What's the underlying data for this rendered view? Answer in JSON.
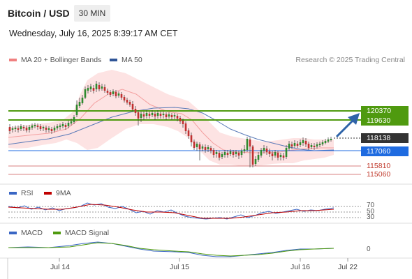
{
  "header": {
    "title": "Bitcoin / USD",
    "timeframe": "30 MIN",
    "datetime": "Wednesday, July 16, 2025 8:39:17 AM CET"
  },
  "legend": {
    "ma20": {
      "label": "MA 20 + Bollinger Bands",
      "color": "#f08080"
    },
    "ma50": {
      "label": "MA 50",
      "color": "#2f5597"
    }
  },
  "credit": "Research © 2025 Trading Central",
  "price_levels": [
    {
      "label": "120370",
      "style": "box",
      "color": "#4f9a0f"
    },
    {
      "label": "119630",
      "style": "box",
      "color": "#4f9a0f"
    },
    {
      "label": "118138",
      "style": "box",
      "color": "#333333"
    },
    {
      "label": "117060",
      "style": "box",
      "color": "#1f6be0"
    },
    {
      "label": "115810",
      "style": "text",
      "color": "#c0392b"
    },
    {
      "label": "115060",
      "style": "text",
      "color": "#c0392b"
    }
  ],
  "rsi": {
    "legend_rsi": "RSI",
    "legend_9ma": "9MA",
    "rsi_color": "#3a66c4",
    "ma_color": "#c00000",
    "levels": [
      "70",
      "50",
      "30"
    ]
  },
  "macd": {
    "legend_macd": "MACD",
    "legend_signal": "MACD Signal",
    "macd_color": "#3a66c4",
    "signal_color": "#4f9a0f",
    "zero_label": "0"
  },
  "x_axis": {
    "labels": [
      "Jul 14",
      "Jul 15",
      "Jul 16",
      "Jul 22"
    ]
  }
}
